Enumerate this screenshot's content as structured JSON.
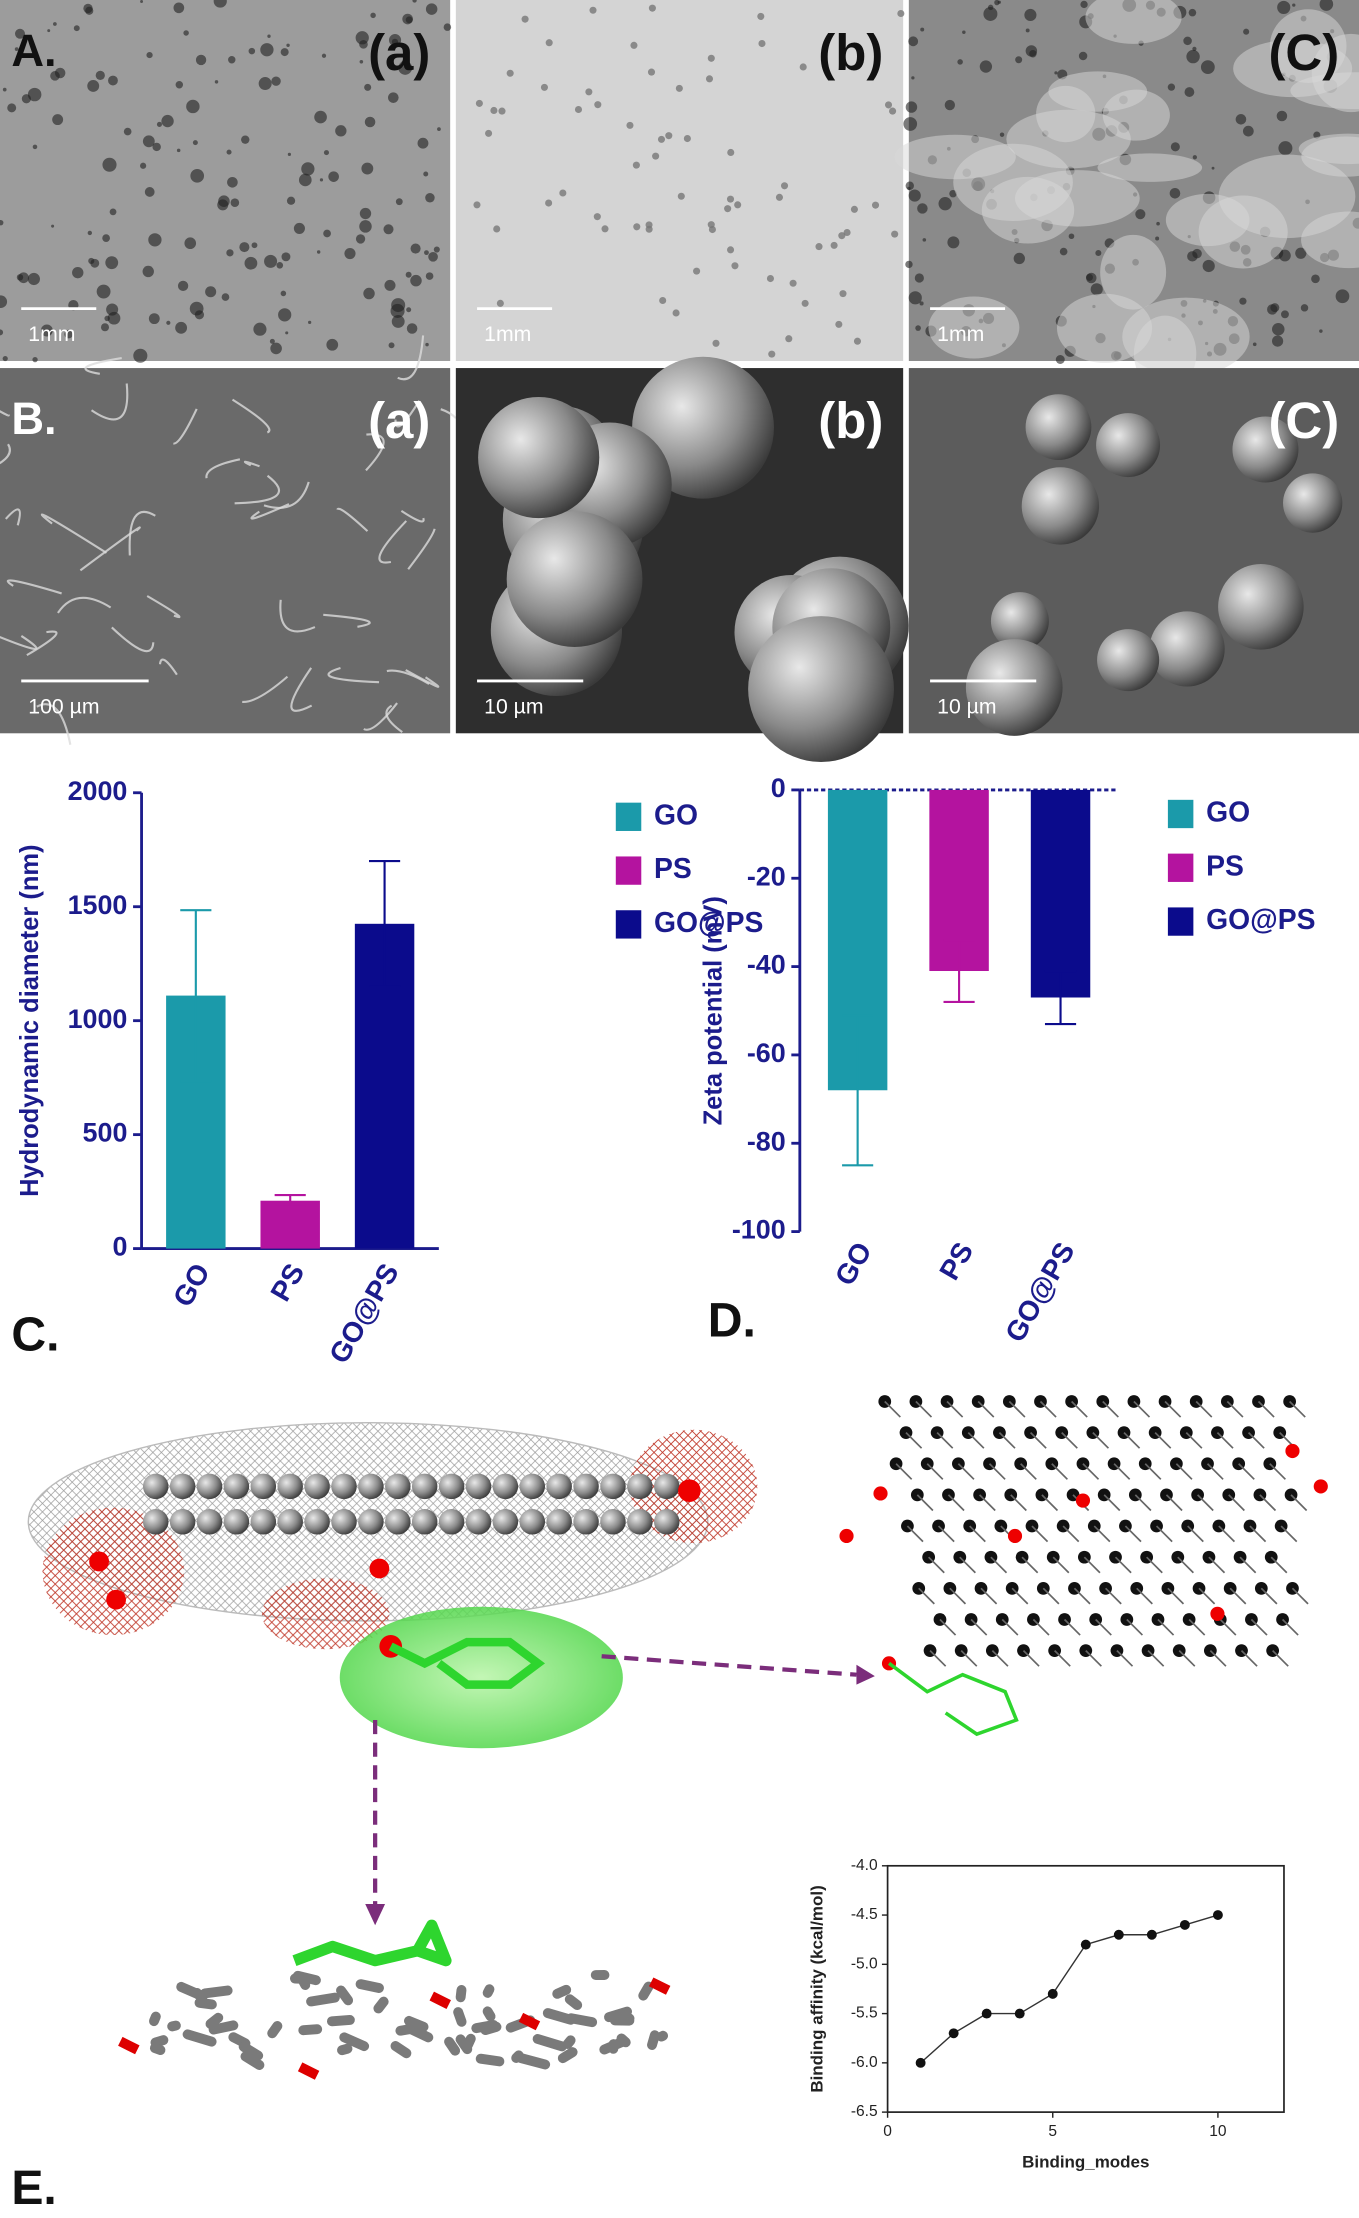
{
  "panels": {
    "A": {
      "label": "A.",
      "images": [
        {
          "tag": "(a)",
          "scale": "1mm"
        },
        {
          "tag": "(b)",
          "scale": "1mm"
        },
        {
          "tag": "(C)",
          "scale": "1mm"
        }
      ]
    },
    "B": {
      "label": "B.",
      "images": [
        {
          "tag": "(a)",
          "scale": "100 µm"
        },
        {
          "tag": "(b)",
          "scale": "10 µm"
        },
        {
          "tag": "(C)",
          "scale": "10 µm"
        }
      ]
    },
    "C": "C.",
    "D": "D.",
    "E": "E."
  },
  "chart_data": [
    {
      "type": "bar",
      "y_label": "Hydrodynamic diameter (nm)",
      "categories": [
        "GO",
        "PS",
        "GO@PS"
      ],
      "values": [
        1110,
        210,
        1425
      ],
      "errors": [
        375,
        25,
        275
      ],
      "colors": [
        "#1b9aaa",
        "#b4139f",
        "#0b0b8c"
      ],
      "ylim": [
        0,
        2000
      ],
      "yticks": [
        0,
        500,
        1000,
        1500,
        2000
      ],
      "legend": "right"
    },
    {
      "type": "bar",
      "y_label": "Zeta potential (mV)",
      "categories": [
        "GO",
        "PS",
        "GO@PS"
      ],
      "values": [
        -68,
        -41,
        -47
      ],
      "errors": [
        17,
        7,
        6
      ],
      "colors": [
        "#1b9aaa",
        "#b4139f",
        "#0b0b8c"
      ],
      "ylim": [
        -100,
        0
      ],
      "yticks": [
        -100,
        -80,
        -60,
        -40,
        -20,
        0
      ],
      "legend": "right"
    },
    {
      "type": "line",
      "x_label": "Binding_modes",
      "y_label": "Binding affinity (kcal/mol)",
      "x": [
        1,
        2,
        3,
        4,
        5,
        6,
        7,
        8,
        9,
        10
      ],
      "values": [
        -6.0,
        -5.7,
        -5.5,
        -5.5,
        -5.3,
        -4.8,
        -4.7,
        -4.7,
        -4.6,
        -4.5
      ],
      "color": "#333333",
      "xlim": [
        0,
        12
      ],
      "xticks": [
        0,
        5,
        10
      ],
      "ylim": [
        -6.5,
        -4.0
      ],
      "yticks": [
        -6.5,
        {
          "value": -6.0,
          "label": "-6.0"
        },
        -5.5,
        {
          "value": -5.0,
          "label": "-5.0"
        },
        -4.5,
        {
          "value": -4.0,
          "label": "-4.0"
        }
      ]
    }
  ]
}
